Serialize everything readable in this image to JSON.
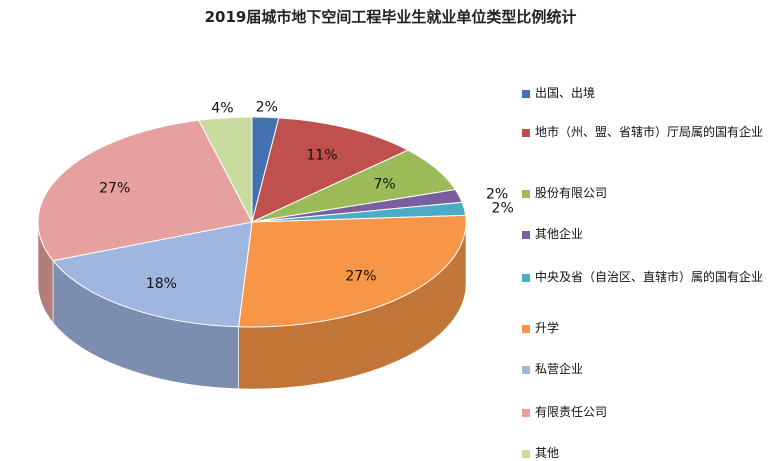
{
  "chart_data": {
    "type": "pie",
    "title": "2019届城市地下空间工程毕业生就业单位类型比例统计",
    "slices": [
      {
        "label": "出国、出境",
        "value": 2,
        "display": "2%",
        "color": "#4472b0"
      },
      {
        "label": "地市（州、盟、省辖市）厅局属的国有企业",
        "value": 11,
        "display": "11%",
        "color": "#c0504d"
      },
      {
        "label": "股份有限公司",
        "value": 7,
        "display": "7%",
        "color": "#9bbb59"
      },
      {
        "label": "其他企业",
        "value": 2,
        "display": "2%",
        "color": "#7a5fa0"
      },
      {
        "label": "中央及省（自治区、直辖市）属的国有企业",
        "value": 2,
        "display": "2%",
        "color": "#4bacc6"
      },
      {
        "label": "升学",
        "value": 27,
        "display": "27%",
        "color": "#f79646"
      },
      {
        "label": "私营企业",
        "value": 18,
        "display": "18%",
        "color": "#9fb6e0"
      },
      {
        "label": "有限责任公司",
        "value": 27,
        "display": "27%",
        "color": "#e6a09f"
      },
      {
        "label": "其他",
        "value": 4,
        "display": "4%",
        "color": "#c8dca0"
      }
    ],
    "legend": "right"
  }
}
